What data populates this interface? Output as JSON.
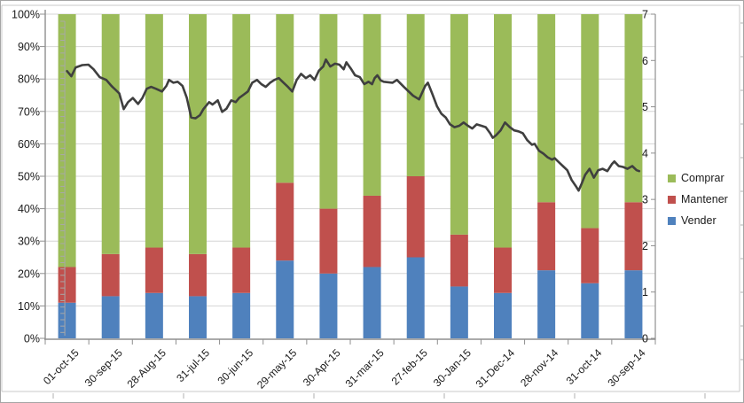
{
  "chart_data": {
    "type": "combo-stacked-bar-line",
    "categories": [
      "01-oct-15",
      "30-sep-15",
      "28-Aug-15",
      "31-jul-15",
      "30-jun-15",
      "29-may-15",
      "30-Apr-15",
      "31-mar-15",
      "27-feb-15",
      "30-Jan-15",
      "31-Dec-14",
      "28-nov-14",
      "31-oct-14",
      "30-sep-14"
    ],
    "series": [
      {
        "name": "Vender",
        "color": "#4F81BD",
        "values": [
          11,
          13,
          14,
          13,
          14,
          24,
          20,
          22,
          25,
          16,
          14,
          21,
          17,
          21
        ]
      },
      {
        "name": "Mantener",
        "color": "#C0504D",
        "values": [
          11,
          13,
          14,
          13,
          14,
          24,
          20,
          22,
          25,
          16,
          14,
          21,
          17,
          21
        ]
      },
      {
        "name": "Comprar",
        "color": "#9BBB59",
        "values": [
          78,
          74,
          72,
          74,
          72,
          52,
          60,
          56,
          50,
          68,
          72,
          58,
          66,
          58
        ]
      }
    ],
    "line_series": {
      "name": "",
      "color": "#3F3F3F",
      "axis": "right",
      "points": [
        [
          0.0,
          5.77
        ],
        [
          0.1,
          5.66
        ],
        [
          0.2,
          5.85
        ],
        [
          0.35,
          5.9
        ],
        [
          0.49,
          5.91
        ],
        [
          0.61,
          5.81
        ],
        [
          0.75,
          5.64
        ],
        [
          0.9,
          5.58
        ],
        [
          1.02,
          5.45
        ],
        [
          1.2,
          5.29
        ],
        [
          1.3,
          4.95
        ],
        [
          1.4,
          5.1
        ],
        [
          1.51,
          5.19
        ],
        [
          1.63,
          5.06
        ],
        [
          1.73,
          5.19
        ],
        [
          1.83,
          5.39
        ],
        [
          1.93,
          5.43
        ],
        [
          2.04,
          5.39
        ],
        [
          2.18,
          5.33
        ],
        [
          2.28,
          5.45
        ],
        [
          2.34,
          5.58
        ],
        [
          2.44,
          5.52
        ],
        [
          2.54,
          5.54
        ],
        [
          2.65,
          5.45
        ],
        [
          2.75,
          5.19
        ],
        [
          2.85,
          4.77
        ],
        [
          2.95,
          4.75
        ],
        [
          3.05,
          4.82
        ],
        [
          3.13,
          4.95
        ],
        [
          3.26,
          5.1
        ],
        [
          3.34,
          5.05
        ],
        [
          3.46,
          5.14
        ],
        [
          3.56,
          4.89
        ],
        [
          3.66,
          4.96
        ],
        [
          3.77,
          5.14
        ],
        [
          3.87,
          5.1
        ],
        [
          3.95,
          5.19
        ],
        [
          4.05,
          5.26
        ],
        [
          4.15,
          5.33
        ],
        [
          4.25,
          5.52
        ],
        [
          4.36,
          5.58
        ],
        [
          4.46,
          5.49
        ],
        [
          4.56,
          5.43
        ],
        [
          4.66,
          5.52
        ],
        [
          4.76,
          5.58
        ],
        [
          4.86,
          5.62
        ],
        [
          4.97,
          5.52
        ],
        [
          5.07,
          5.43
        ],
        [
          5.17,
          5.33
        ],
        [
          5.27,
          5.58
        ],
        [
          5.37,
          5.71
        ],
        [
          5.48,
          5.62
        ],
        [
          5.58,
          5.68
        ],
        [
          5.68,
          5.58
        ],
        [
          5.78,
          5.78
        ],
        [
          5.88,
          5.87
        ],
        [
          5.94,
          6.02
        ],
        [
          6.04,
          5.87
        ],
        [
          6.15,
          5.93
        ],
        [
          6.25,
          5.91
        ],
        [
          6.35,
          5.81
        ],
        [
          6.41,
          5.96
        ],
        [
          6.51,
          5.83
        ],
        [
          6.61,
          5.68
        ],
        [
          6.72,
          5.64
        ],
        [
          6.82,
          5.49
        ],
        [
          6.92,
          5.54
        ],
        [
          7.0,
          5.49
        ],
        [
          7.06,
          5.62
        ],
        [
          7.12,
          5.68
        ],
        [
          7.2,
          5.57
        ],
        [
          7.27,
          5.54
        ],
        [
          7.47,
          5.52
        ],
        [
          7.57,
          5.58
        ],
        [
          7.73,
          5.43
        ],
        [
          7.94,
          5.24
        ],
        [
          8.08,
          5.16
        ],
        [
          8.22,
          5.45
        ],
        [
          8.28,
          5.52
        ],
        [
          8.39,
          5.26
        ],
        [
          8.49,
          5.01
        ],
        [
          8.59,
          4.85
        ],
        [
          8.69,
          4.77
        ],
        [
          8.79,
          4.62
        ],
        [
          8.89,
          4.56
        ],
        [
          9.0,
          4.59
        ],
        [
          9.1,
          4.66
        ],
        [
          9.2,
          4.59
        ],
        [
          9.3,
          4.53
        ],
        [
          9.4,
          4.62
        ],
        [
          9.51,
          4.59
        ],
        [
          9.61,
          4.56
        ],
        [
          9.71,
          4.43
        ],
        [
          9.77,
          4.33
        ],
        [
          9.85,
          4.39
        ],
        [
          9.95,
          4.49
        ],
        [
          10.05,
          4.66
        ],
        [
          10.16,
          4.56
        ],
        [
          10.26,
          4.49
        ],
        [
          10.36,
          4.47
        ],
        [
          10.46,
          4.43
        ],
        [
          10.56,
          4.28
        ],
        [
          10.67,
          4.18
        ],
        [
          10.73,
          4.2
        ],
        [
          10.83,
          4.05
        ],
        [
          10.93,
          3.99
        ],
        [
          11.03,
          3.91
        ],
        [
          11.13,
          3.86
        ],
        [
          11.19,
          3.89
        ],
        [
          11.3,
          3.79
        ],
        [
          11.4,
          3.7
        ],
        [
          11.48,
          3.63
        ],
        [
          11.58,
          3.42
        ],
        [
          11.68,
          3.28
        ],
        [
          11.74,
          3.19
        ],
        [
          11.81,
          3.34
        ],
        [
          11.89,
          3.53
        ],
        [
          11.99,
          3.66
        ],
        [
          12.09,
          3.47
        ],
        [
          12.19,
          3.63
        ],
        [
          12.29,
          3.66
        ],
        [
          12.4,
          3.61
        ],
        [
          12.5,
          3.76
        ],
        [
          12.56,
          3.82
        ],
        [
          12.66,
          3.72
        ],
        [
          12.76,
          3.7
        ],
        [
          12.86,
          3.66
        ],
        [
          12.97,
          3.72
        ],
        [
          13.07,
          3.63
        ],
        [
          13.13,
          3.61
        ]
      ]
    },
    "left_axis": {
      "min": 0,
      "max": 100,
      "major": 10,
      "ticks": [
        "0%",
        "10%",
        "20%",
        "30%",
        "40%",
        "50%",
        "60%",
        "70%",
        "80%",
        "90%",
        "100%"
      ]
    },
    "right_axis": {
      "min": 0,
      "max": 7,
      "major": 1,
      "ticks": [
        "0",
        "1",
        "2",
        "3",
        "4",
        "5",
        "6",
        "7"
      ]
    },
    "legend": [
      {
        "label": "Comprar",
        "color": "#9BBB59"
      },
      {
        "label": "Mantener",
        "color": "#C0504D"
      },
      {
        "label": "Vender",
        "color": "#4F81BD"
      }
    ],
    "grid": true,
    "legend_position": "right",
    "colors": {
      "gridline": "#d6d6d6",
      "axis": "#8f8f8f",
      "frame": "#c8c8c8",
      "stub": "#b0b0b0",
      "ruler": "#a8a8a8",
      "text": "#1a1a1a"
    }
  }
}
